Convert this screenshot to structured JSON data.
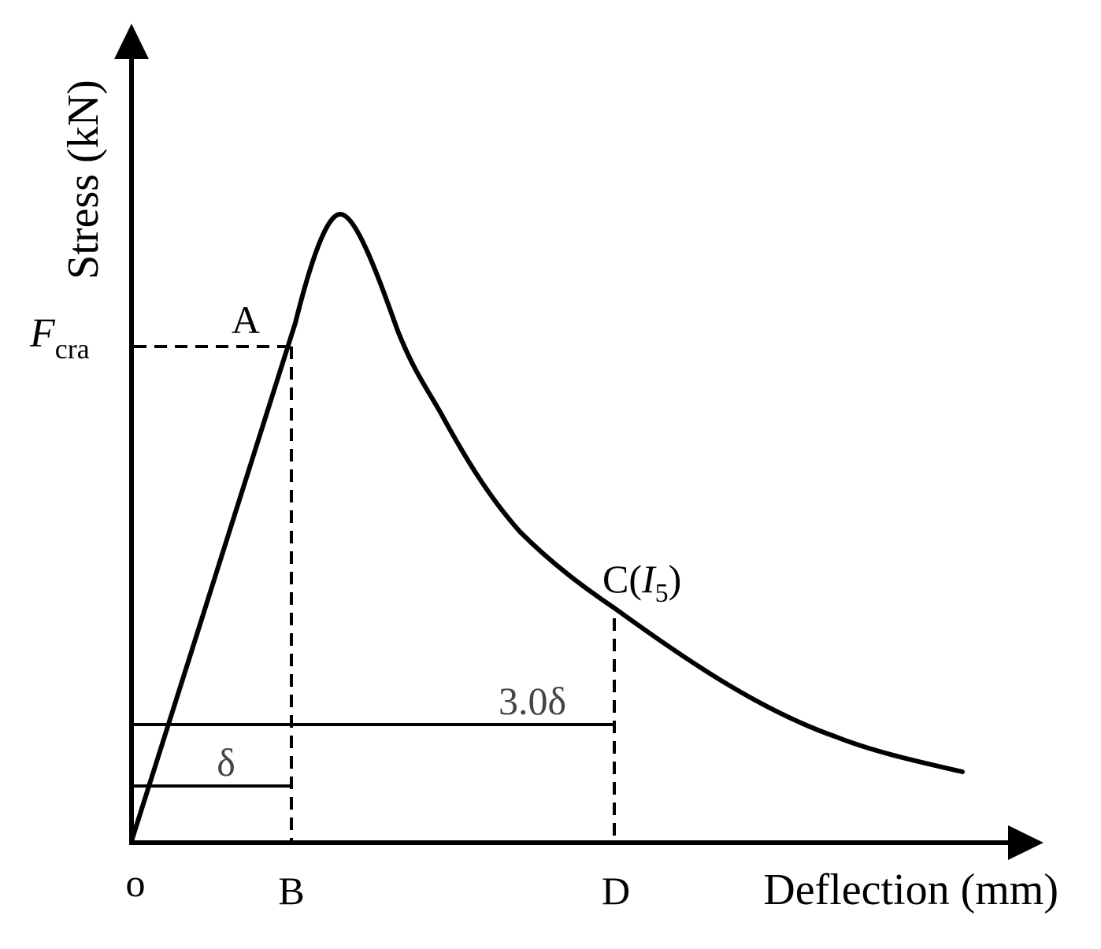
{
  "labels": {
    "y_axis": "Stress (kN)",
    "x_axis": "Deflection (mm)",
    "origin": "o",
    "point_a": "A",
    "point_b": "B",
    "point_c_prefix": "C(",
    "point_c_var": "I",
    "point_c_sub": "5",
    "point_c_suffix": ")",
    "point_d": "D",
    "f_cra_main": "F",
    "f_cra_sub": "cra",
    "delta": "δ",
    "three_delta": "3.0δ"
  },
  "colors": {
    "stroke": "#000000",
    "annotation_text": "#444444"
  }
}
